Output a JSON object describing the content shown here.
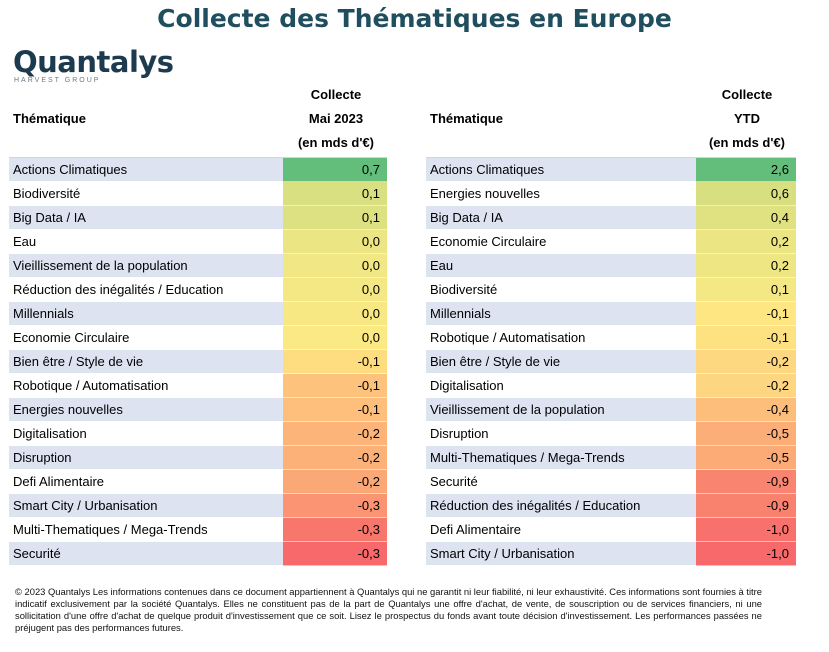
{
  "title": "Collecte des Thématiques en Europe",
  "logo": {
    "name": "Quantalys",
    "sub": "HARVEST GROUP"
  },
  "left": {
    "label_header": "Thématique",
    "value_header": [
      "Collecte",
      "Mai 2023",
      "(en mds d'€)"
    ],
    "rows": [
      {
        "label": "Actions Climatiques",
        "value": "0,7",
        "color": "#63be7b"
      },
      {
        "label": "Biodiversité",
        "value": "0,1",
        "color": "#d9e081"
      },
      {
        "label": "Big Data / IA",
        "value": "0,1",
        "color": "#dde182"
      },
      {
        "label": "Eau",
        "value": "0,0",
        "color": "#ece583"
      },
      {
        "label": "Vieillissement de la population",
        "value": "0,0",
        "color": "#f1e784"
      },
      {
        "label": "Réduction des inégalités / Education",
        "value": "0,0",
        "color": "#f4e884"
      },
      {
        "label": "Millennials",
        "value": "0,0",
        "color": "#f7e884"
      },
      {
        "label": "Economie Circulaire",
        "value": "0,0",
        "color": "#fbe983"
      },
      {
        "label": "Bien être / Style de vie",
        "value": "-0,1",
        "color": "#fedd81"
      },
      {
        "label": "Robotique / Automatisation",
        "value": "-0,1",
        "color": "#fdc27c"
      },
      {
        "label": "Energies nouvelles",
        "value": "-0,1",
        "color": "#fdbf7b"
      },
      {
        "label": "Digitalisation",
        "value": "-0,2",
        "color": "#fcb479"
      },
      {
        "label": "Disruption",
        "value": "-0,2",
        "color": "#fcb179"
      },
      {
        "label": "Defi Alimentaire",
        "value": "-0,2",
        "color": "#fba877"
      },
      {
        "label": "Smart City / Urbanisation",
        "value": "-0,3",
        "color": "#fa9473"
      },
      {
        "label": "Multi-Thematiques / Mega-Trends",
        "value": "-0,3",
        "color": "#f8776d"
      },
      {
        "label": "Securité",
        "value": "-0,3",
        "color": "#f8696b"
      }
    ]
  },
  "right": {
    "label_header": "Thématique",
    "value_header": [
      "Collecte",
      "YTD",
      "(en mds d'€)"
    ],
    "rows": [
      {
        "label": "Actions Climatiques",
        "value": "2,6",
        "color": "#63be7b"
      },
      {
        "label": "Energies nouvelles",
        "value": "0,6",
        "color": "#d8df81"
      },
      {
        "label": "Big Data / IA",
        "value": "0,4",
        "color": "#e0e282"
      },
      {
        "label": "Economie Circulaire",
        "value": "0,2",
        "color": "#ebe583"
      },
      {
        "label": "Eau",
        "value": "0,2",
        "color": "#eee683"
      },
      {
        "label": "Biodiversité",
        "value": "0,1",
        "color": "#f4e884"
      },
      {
        "label": "Millennials",
        "value": "-0,1",
        "color": "#fee683"
      },
      {
        "label": "Robotique / Automatisation",
        "value": "-0,1",
        "color": "#fee282"
      },
      {
        "label": "Bien être / Style de vie",
        "value": "-0,2",
        "color": "#fed880"
      },
      {
        "label": "Digitalisation",
        "value": "-0,2",
        "color": "#fed580"
      },
      {
        "label": "Vieillissement de la population",
        "value": "-0,4",
        "color": "#fdbd7b"
      },
      {
        "label": "Disruption",
        "value": "-0,5",
        "color": "#fcae78"
      },
      {
        "label": "Multi-Thematiques / Mega-Trends",
        "value": "-0,5",
        "color": "#fcab77"
      },
      {
        "label": "Securité",
        "value": "-0,9",
        "color": "#f98570"
      },
      {
        "label": "Réduction des inégalités / Education",
        "value": "-0,9",
        "color": "#f9826f"
      },
      {
        "label": "Defi Alimentaire",
        "value": "-1,0",
        "color": "#f8716c"
      },
      {
        "label": "Smart City / Urbanisation",
        "value": "-1,0",
        "color": "#f8696b"
      }
    ]
  },
  "footer": "© 2023 Quantalys Les informations contenues dans ce document appartiennent à Quantalys qui ne garantit ni leur fiabilité, ni leur exhaustivité. Ces informations sont fournies à titre indicatif exclusivement par la société Quantalys. Elles ne constituent pas de la part de Quantalys une offre d'achat, de vente, de souscription ou de services financiers, ni une sollicitation d'une offre d'achat de quelque produit d'investissement que ce soit. Lisez le prospectus du fonds avant toute décision d'investissement. Les performances passées ne préjugent pas des performances futures."
}
